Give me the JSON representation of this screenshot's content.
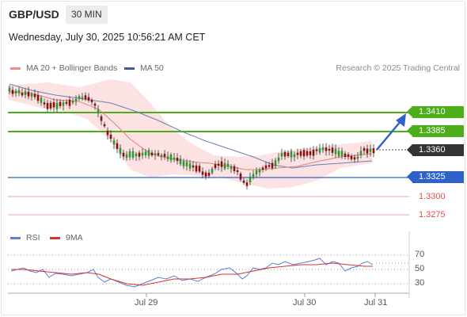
{
  "header": {
    "pair": "GBP/USD",
    "timeframe": "30 MIN",
    "datetime": "Wednesday, July 30, 2025 10:56:21 AM CET"
  },
  "legend": {
    "ma20": "MA 20 + Bollinger Bands",
    "ma50": "MA 50",
    "ma20_color": "#f08c8c",
    "ma50_color": "#3a5a9a"
  },
  "credit": "Research © 2025 Trading Central",
  "levels": [
    {
      "label": "1.3410",
      "kind": "resistance",
      "color": "#4caf1a"
    },
    {
      "label": "1.3385",
      "kind": "resistance",
      "color": "#4caf1a"
    },
    {
      "label": "1.3360",
      "kind": "current",
      "color": "#333333"
    },
    {
      "label": "1.3325",
      "kind": "pivot",
      "color": "#2f62c9"
    },
    {
      "label": "1.3300",
      "kind": "support",
      "color": "#e05050"
    },
    {
      "label": "1.3275",
      "kind": "support",
      "color": "#e05050"
    }
  ],
  "rsi_legend": {
    "rsi": "RSI",
    "ma9": "9MA",
    "rsi_color": "#5b7fd6",
    "ma9_color": "#d93030"
  },
  "rsi_levels": [
    "70",
    "50",
    "30"
  ],
  "xaxis": [
    "Jul 29",
    "Jul 30",
    "Jul 31"
  ]
}
